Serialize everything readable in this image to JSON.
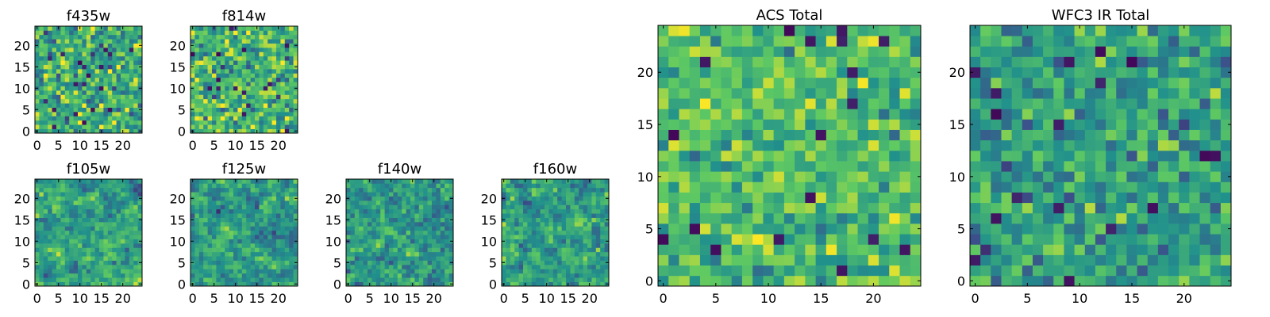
{
  "figure": {
    "colormap": "viridis",
    "colormap_stops": [
      "#440154",
      "#3b528b",
      "#21918c",
      "#5ec962",
      "#fde725"
    ]
  },
  "chart_data": [
    {
      "type": "heatmap",
      "title": "f435w",
      "grid_size": [
        25,
        25
      ],
      "xlim": [
        0,
        24
      ],
      "ylim": [
        0,
        24
      ],
      "x_ticks": [
        0,
        5,
        10,
        15,
        20
      ],
      "y_ticks": [
        0,
        5,
        10,
        15,
        20
      ],
      "x_tick_labels": [
        "0",
        "5",
        "10",
        "15",
        "20"
      ],
      "y_tick_labels": [
        "0",
        "5",
        "10",
        "15",
        "20"
      ],
      "seed": 11,
      "smooth": 0,
      "mean": 0.62,
      "spread": 0.17
    },
    {
      "type": "heatmap",
      "title": "f814w",
      "grid_size": [
        25,
        25
      ],
      "xlim": [
        0,
        24
      ],
      "ylim": [
        0,
        24
      ],
      "x_ticks": [
        0,
        5,
        10,
        15,
        20
      ],
      "y_ticks": [
        0,
        5,
        10,
        15,
        20
      ],
      "x_tick_labels": [
        "0",
        "5",
        "10",
        "15",
        "20"
      ],
      "y_tick_labels": [
        "0",
        "5",
        "10",
        "15",
        "20"
      ],
      "seed": 23,
      "smooth": 0,
      "mean": 0.66,
      "spread": 0.17
    },
    {
      "type": "heatmap",
      "title": "f105w",
      "grid_size": [
        25,
        25
      ],
      "xlim": [
        0,
        24
      ],
      "ylim": [
        0,
        24
      ],
      "x_ticks": [
        0,
        5,
        10,
        15,
        20
      ],
      "y_ticks": [
        0,
        5,
        10,
        15,
        20
      ],
      "x_tick_labels": [
        "0",
        "5",
        "10",
        "15",
        "20"
      ],
      "y_tick_labels": [
        "0",
        "5",
        "10",
        "15",
        "20"
      ],
      "seed": 37,
      "smooth": 1,
      "mean": 0.58,
      "spread": 0.2
    },
    {
      "type": "heatmap",
      "title": "f125w",
      "grid_size": [
        25,
        25
      ],
      "xlim": [
        0,
        24
      ],
      "ylim": [
        0,
        24
      ],
      "x_ticks": [
        0,
        5,
        10,
        15,
        20
      ],
      "y_ticks": [
        0,
        5,
        10,
        15,
        20
      ],
      "x_tick_labels": [
        "0",
        "5",
        "10",
        "15",
        "20"
      ],
      "y_tick_labels": [
        "0",
        "5",
        "10",
        "15",
        "20"
      ],
      "seed": 41,
      "smooth": 1,
      "mean": 0.55,
      "spread": 0.2
    },
    {
      "type": "heatmap",
      "title": "f140w",
      "grid_size": [
        25,
        25
      ],
      "xlim": [
        0,
        24
      ],
      "ylim": [
        0,
        24
      ],
      "x_ticks": [
        0,
        5,
        10,
        15,
        20
      ],
      "y_ticks": [
        0,
        5,
        10,
        15,
        20
      ],
      "x_tick_labels": [
        "0",
        "5",
        "10",
        "15",
        "20"
      ],
      "y_tick_labels": [
        "0",
        "5",
        "10",
        "15",
        "20"
      ],
      "seed": 53,
      "smooth": 1,
      "mean": 0.55,
      "spread": 0.2
    },
    {
      "type": "heatmap",
      "title": "f160w",
      "grid_size": [
        25,
        25
      ],
      "xlim": [
        0,
        24
      ],
      "ylim": [
        0,
        24
      ],
      "x_ticks": [
        0,
        5,
        10,
        15,
        20
      ],
      "y_ticks": [
        0,
        5,
        10,
        15,
        20
      ],
      "x_tick_labels": [
        "0",
        "5",
        "10",
        "15",
        "20"
      ],
      "y_tick_labels": [
        "0",
        "5",
        "10",
        "15",
        "20"
      ],
      "seed": 67,
      "smooth": 1,
      "mean": 0.55,
      "spread": 0.19
    },
    {
      "type": "heatmap",
      "title": "ACS Total",
      "grid_size": [
        25,
        25
      ],
      "xlim": [
        0,
        24
      ],
      "ylim": [
        0,
        24
      ],
      "x_ticks": [
        0,
        5,
        10,
        15,
        20
      ],
      "y_ticks": [
        0,
        5,
        10,
        15,
        20
      ],
      "x_tick_labels": [
        "0",
        "5",
        "10",
        "15",
        "20"
      ],
      "y_tick_labels": [
        "0",
        "5",
        "10",
        "15",
        "20"
      ],
      "seed": 79,
      "smooth": 0,
      "mean": 0.68,
      "spread": 0.13
    },
    {
      "type": "heatmap",
      "title": "WFC3 IR Total",
      "grid_size": [
        25,
        25
      ],
      "xlim": [
        0,
        24
      ],
      "ylim": [
        0,
        24
      ],
      "x_ticks": [
        0,
        5,
        10,
        15,
        20
      ],
      "y_ticks": [
        0,
        5,
        10,
        15,
        20
      ],
      "x_tick_labels": [
        "0",
        "5",
        "10",
        "15",
        "20"
      ],
      "y_tick_labels": [
        "0",
        "5",
        "10",
        "15",
        "20"
      ],
      "seed": 97,
      "smooth": 0,
      "mean": 0.56,
      "spread": 0.14
    }
  ]
}
